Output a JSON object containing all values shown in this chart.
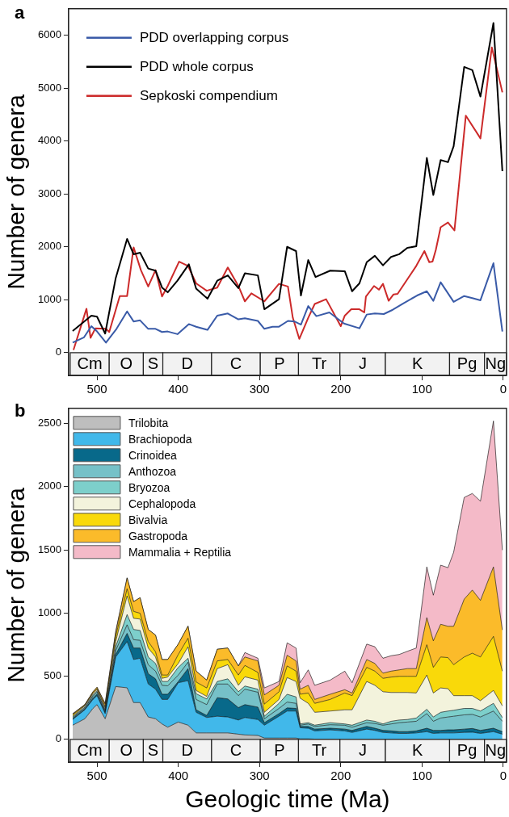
{
  "chart_data": [
    {
      "type": "line",
      "title": "a",
      "ylabel": "Number of genera",
      "xlim": [
        535,
        -4
      ],
      "ylim": [
        -430,
        6500
      ],
      "xticks": [
        500,
        400,
        300,
        200,
        100,
        0
      ],
      "yticks": [
        0,
        1000,
        2000,
        3000,
        4000,
        5000,
        6000
      ],
      "legend": "top left",
      "bands": [
        {
          "axis": "x",
          "from": 533,
          "to": 485,
          "label": "Cm"
        },
        {
          "axis": "x",
          "from": 485,
          "to": 443,
          "label": "O"
        },
        {
          "axis": "x",
          "from": 443,
          "to": 419,
          "label": "S"
        },
        {
          "axis": "x",
          "from": 419,
          "to": 359,
          "label": "D"
        },
        {
          "axis": "x",
          "from": 359,
          "to": 299,
          "label": "C"
        },
        {
          "axis": "x",
          "from": 299,
          "to": 252,
          "label": "P"
        },
        {
          "axis": "x",
          "from": 252,
          "to": 201,
          "label": "Tr"
        },
        {
          "axis": "x",
          "from": 201,
          "to": 145,
          "label": "J"
        },
        {
          "axis": "x",
          "from": 145,
          "to": 66,
          "label": "K"
        },
        {
          "axis": "x",
          "from": 66,
          "to": 23,
          "label": "Pg"
        },
        {
          "axis": "x",
          "from": 23,
          "to": -4,
          "label": "Ng"
        }
      ],
      "series": [
        {
          "name": "PDD overlapping corpus",
          "color": "#3a5ba8",
          "x": [
            530,
            516,
            507,
            500,
            489,
            476,
            463,
            455,
            447,
            437,
            428,
            420,
            413,
            401,
            387,
            378,
            364,
            352,
            339,
            326,
            318,
            302,
            294,
            284,
            276,
            265,
            257,
            249,
            240,
            230,
            214,
            196,
            177,
            168,
            158,
            147,
            136,
            123,
            106,
            94,
            86,
            77,
            61,
            48,
            38,
            28,
            12,
            1
          ],
          "values": [
            190,
            290,
            500,
            400,
            190,
            450,
            780,
            590,
            610,
            450,
            450,
            390,
            400,
            350,
            540,
            490,
            430,
            700,
            740,
            630,
            650,
            600,
            450,
            490,
            490,
            600,
            590,
            530,
            880,
            690,
            760,
            550,
            460,
            720,
            740,
            730,
            810,
            930,
            1080,
            1160,
            980,
            1330,
            960,
            1070,
            1030,
            990,
            1690,
            400
          ]
        },
        {
          "name": "PDD whole corpus",
          "color": "#000000",
          "x": [
            530,
            507,
            500,
            490,
            477,
            463,
            455,
            447,
            437,
            428,
            420,
            413,
            401,
            387,
            378,
            364,
            352,
            339,
            326,
            318,
            302,
            294,
            276,
            266,
            255,
            249,
            240,
            231,
            213,
            195,
            186,
            177,
            168,
            158,
            148,
            138,
            128,
            118,
            107,
            94,
            86,
            77,
            68,
            61,
            48,
            38,
            28,
            12,
            1
          ],
          "values": [
            410,
            700,
            680,
            360,
            1410,
            2150,
            1860,
            1890,
            1590,
            1550,
            1230,
            1140,
            1360,
            1670,
            1210,
            1020,
            1360,
            1460,
            1220,
            1500,
            1460,
            820,
            1010,
            2000,
            1920,
            1080,
            1750,
            1430,
            1550,
            1540,
            1160,
            1310,
            1710,
            1830,
            1650,
            1810,
            1860,
            1980,
            2010,
            3680,
            2980,
            3640,
            3600,
            3900,
            5400,
            5340,
            4840,
            6230,
            3430
          ]
        },
        {
          "name": "Sepkoski compendium",
          "color": "#cc2a2a",
          "x": [
            529,
            513,
            508,
            502,
            489,
            485,
            472,
            463,
            455,
            446,
            437,
            428,
            420,
            413,
            399,
            388,
            378,
            365,
            352,
            339,
            326,
            318,
            310,
            294,
            276,
            265,
            259,
            251,
            240,
            232,
            218,
            200,
            195,
            187,
            177,
            171,
            169,
            159,
            153,
            148,
            141,
            135,
            130,
            107,
            97,
            91,
            87,
            83,
            77,
            68,
            60,
            46,
            28,
            14,
            1
          ],
          "values": [
            50,
            830,
            280,
            460,
            450,
            390,
            1070,
            1070,
            1990,
            1560,
            1250,
            1560,
            1060,
            1260,
            1720,
            1640,
            1310,
            1170,
            1230,
            1610,
            1260,
            970,
            1120,
            970,
            1300,
            1250,
            660,
            260,
            660,
            920,
            1010,
            500,
            700,
            820,
            820,
            760,
            1060,
            1260,
            1190,
            1300,
            980,
            1100,
            1110,
            1640,
            1920,
            1710,
            1720,
            1940,
            2370,
            2460,
            2310,
            4480,
            4050,
            5770,
            4920
          ]
        }
      ]
    },
    {
      "type": "area",
      "stacked": true,
      "title": "b",
      "xlabel": "Geologic time (Ma)",
      "ylabel": "Number of genera",
      "xlim": [
        535,
        -4
      ],
      "ylim": [
        -180,
        2620
      ],
      "xticks": [
        500,
        400,
        300,
        200,
        100,
        0
      ],
      "yticks": [
        0,
        500,
        1000,
        1500,
        2000,
        2500
      ],
      "legend": "top left",
      "bands": [
        {
          "axis": "x",
          "from": 533,
          "to": 485,
          "label": "Cm"
        },
        {
          "axis": "x",
          "from": 485,
          "to": 443,
          "label": "O"
        },
        {
          "axis": "x",
          "from": 443,
          "to": 419,
          "label": "S"
        },
        {
          "axis": "x",
          "from": 419,
          "to": 359,
          "label": "D"
        },
        {
          "axis": "x",
          "from": 359,
          "to": 299,
          "label": "C"
        },
        {
          "axis": "x",
          "from": 299,
          "to": 252,
          "label": "P"
        },
        {
          "axis": "x",
          "from": 252,
          "to": 201,
          "label": "Tr"
        },
        {
          "axis": "x",
          "from": 201,
          "to": 145,
          "label": "J"
        },
        {
          "axis": "x",
          "from": 145,
          "to": 66,
          "label": "K"
        },
        {
          "axis": "x",
          "from": 66,
          "to": 23,
          "label": "Pg"
        },
        {
          "axis": "x",
          "from": 23,
          "to": -4,
          "label": "Ng"
        }
      ],
      "x": [
        530,
        515,
        505,
        500,
        490,
        477,
        463,
        455,
        447,
        437,
        428,
        420,
        413,
        400,
        388,
        378,
        365,
        352,
        339,
        326,
        318,
        302,
        294,
        276,
        266,
        255,
        250,
        240,
        232,
        213,
        195,
        186,
        168,
        158,
        148,
        138,
        128,
        118,
        107,
        94,
        86,
        77,
        68,
        61,
        48,
        38,
        28,
        12,
        1
      ],
      "series": [
        {
          "name": "Trilobita",
          "color": "#bebebe",
          "values": [
            112,
            163,
            245,
            275,
            163,
            418,
            408,
            291,
            291,
            177,
            163,
            122,
            96,
            137,
            112,
            51,
            51,
            51,
            51,
            41,
            35,
            31,
            10,
            10,
            10,
            10,
            4,
            4,
            2,
            2,
            0,
            0,
            0,
            0,
            0,
            0,
            0,
            0,
            0,
            0,
            0,
            0,
            0,
            0,
            0,
            0,
            0,
            0,
            0
          ]
        },
        {
          "name": "Brachiopoda",
          "color": "#41b8ea",
          "values": [
            45,
            71,
            71,
            71,
            41,
            234,
            366,
            341,
            351,
            261,
            234,
            194,
            220,
            311,
            353,
            163,
            122,
            132,
            126,
            112,
            138,
            126,
            102,
            173,
            214,
            214,
            88,
            84,
            65,
            73,
            67,
            55,
            81,
            71,
            55,
            51,
            47,
            47,
            51,
            61,
            47,
            51,
            51,
            51,
            55,
            57,
            47,
            61,
            41
          ]
        },
        {
          "name": "Crinoidea",
          "color": "#08698a",
          "values": [
            6,
            6,
            10,
            11,
            10,
            20,
            65,
            91,
            81,
            82,
            82,
            41,
            41,
            10,
            95,
            20,
            16,
            147,
            143,
            98,
            102,
            98,
            20,
            21,
            25,
            21,
            10,
            14,
            14,
            13,
            14,
            16,
            21,
            17,
            16,
            16,
            14,
            14,
            16,
            27,
            24,
            20,
            24,
            24,
            26,
            29,
            24,
            27,
            20
          ]
        },
        {
          "name": "Anthozoa",
          "color": "#76c1c8",
          "values": [
            6,
            9,
            14,
            16,
            10,
            31,
            68,
            66,
            61,
            71,
            61,
            71,
            67,
            51,
            51,
            82,
            86,
            108,
            118,
            95,
            122,
            118,
            31,
            41,
            46,
            40,
            10,
            20,
            21,
            28,
            31,
            25,
            30,
            38,
            41,
            55,
            71,
            76,
            76,
            116,
            72,
            98,
            102,
            108,
            113,
            112,
            106,
            136,
            82
          ]
        },
        {
          "name": "Bryozoa",
          "color": "#7dcfcb",
          "values": [
            8,
            6,
            10,
            8,
            10,
            30,
            81,
            81,
            78,
            61,
            61,
            30,
            34,
            61,
            31,
            45,
            45,
            20,
            41,
            31,
            25,
            24,
            20,
            40,
            62,
            51,
            10,
            10,
            10,
            16,
            10,
            16,
            21,
            17,
            10,
            21,
            21,
            20,
            26,
            34,
            34,
            45,
            47,
            47,
            51,
            47,
            47,
            61,
            30
          ]
        },
        {
          "name": "Cephalopoda",
          "color": "#f3f3dc",
          "values": [
            6,
            10,
            11,
            12,
            15,
            41,
            147,
            88,
            90,
            71,
            51,
            25,
            35,
            31,
            91,
            26,
            20,
            102,
            112,
            51,
            73,
            72,
            31,
            31,
            132,
            122,
            204,
            153,
            102,
            92,
            112,
            122,
            305,
            285,
            255,
            228,
            218,
            214,
            198,
            271,
            190,
            193,
            177,
            116,
            101,
            101,
            82,
            102,
            92
          ]
        },
        {
          "name": "Bivalvia",
          "color": "#f9d90a",
          "values": [
            11,
            6,
            6,
            8,
            10,
            41,
            57,
            55,
            46,
            51,
            41,
            26,
            16,
            71,
            68,
            67,
            67,
            61,
            41,
            81,
            90,
            61,
            65,
            61,
            92,
            82,
            31,
            82,
            71,
            92,
            133,
            112,
            112,
            112,
            106,
            122,
            128,
            128,
            132,
            240,
            203,
            245,
            246,
            245,
            306,
            336,
            346,
            428,
            275
          ]
        },
        {
          "name": "Gastropoda",
          "color": "#fbbb2a",
          "values": [
            6,
            4,
            10,
            11,
            20,
            31,
            86,
            77,
            123,
            96,
            132,
            123,
            123,
            82,
            95,
            86,
            62,
            92,
            91,
            72,
            67,
            91,
            73,
            51,
            85,
            81,
            40,
            61,
            31,
            41,
            26,
            21,
            62,
            61,
            41,
            47,
            51,
            61,
            61,
            215,
            210,
            259,
            248,
            304,
            458,
            500,
            448,
            550,
            326
          ]
        },
        {
          "name": "Mammalia + Reptilia",
          "color": "#f4bac8",
          "values": [
            4,
            0,
            0,
            0,
            6,
            10,
            0,
            0,
            0,
            0,
            0,
            0,
            0,
            0,
            0,
            0,
            0,
            0,
            0,
            0,
            35,
            21,
            55,
            30,
            98,
            102,
            51,
            122,
            112,
            112,
            147,
            81,
            122,
            132,
            118,
            122,
            122,
            137,
            163,
            401,
            361,
            468,
            464,
            586,
            805,
            764,
            785,
            1155,
            632
          ]
        }
      ]
    }
  ]
}
